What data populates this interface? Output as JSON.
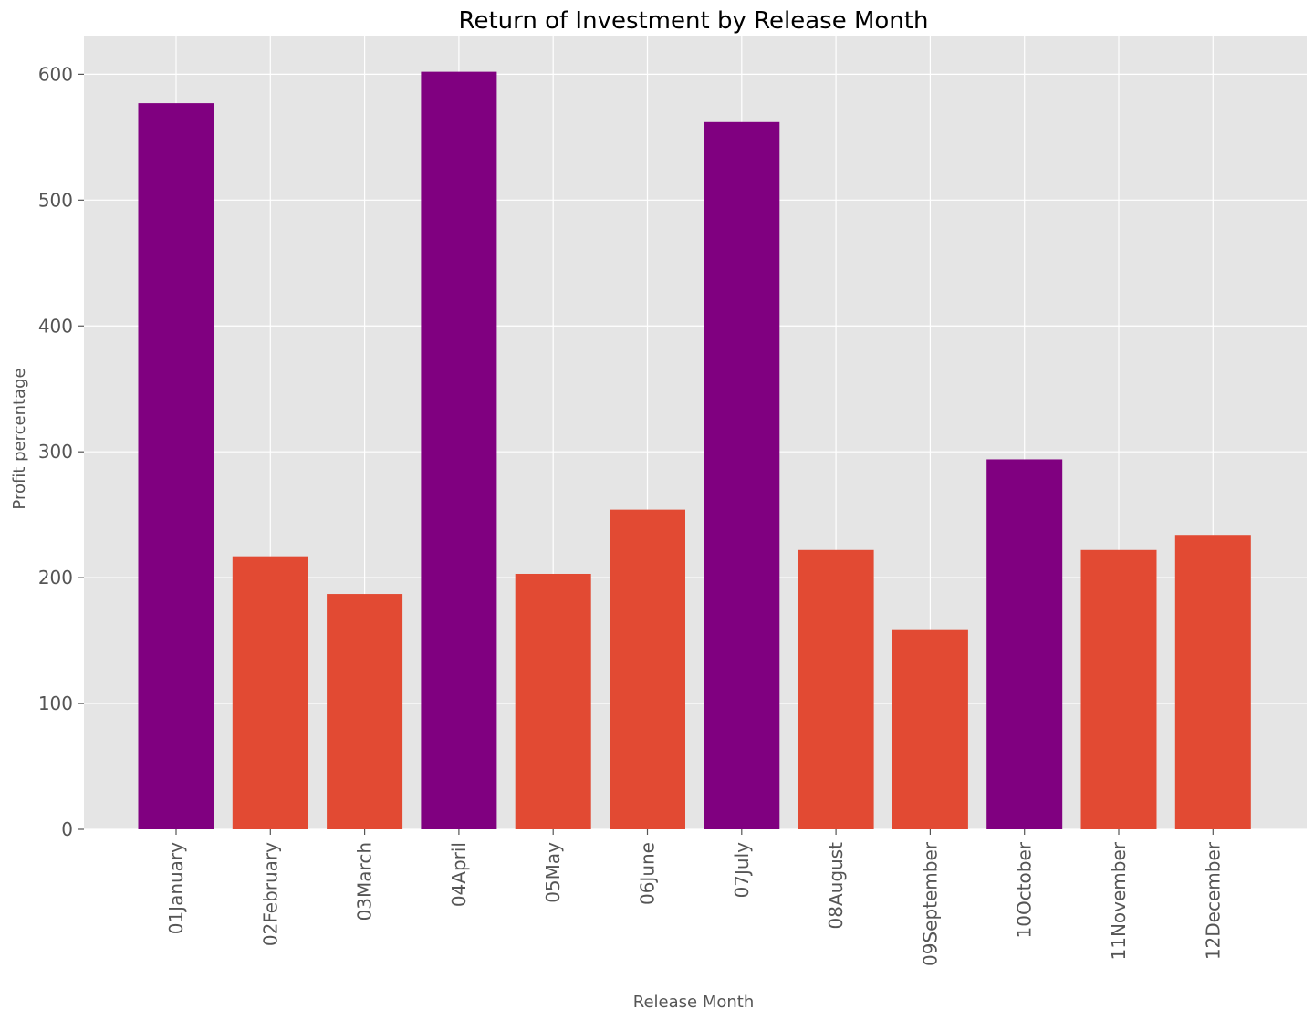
{
  "chart_data": {
    "type": "bar",
    "title": "Return of Investment by Release Month",
    "xlabel": "Release Month",
    "ylabel": "Profit percentage",
    "categories": [
      "01January",
      "02February",
      "03March",
      "04April",
      "05May",
      "06June",
      "07July",
      "08August",
      "09September",
      "10October",
      "11November",
      "12December"
    ],
    "values": [
      577,
      217,
      187,
      602,
      203,
      254,
      562,
      222,
      159,
      294,
      222,
      234
    ],
    "bar_colors": [
      "#800080",
      "#E24A33",
      "#E24A33",
      "#800080",
      "#E24A33",
      "#E24A33",
      "#800080",
      "#E24A33",
      "#E24A33",
      "#800080",
      "#E24A33",
      "#E24A33"
    ],
    "ylim": [
      0,
      630
    ],
    "yticks": [
      0,
      100,
      200,
      300,
      400,
      500,
      600
    ],
    "grid": true,
    "colors": {
      "plot_background": "#E5E5E5",
      "grid": "#FFFFFF",
      "highlight_bar": "#800080",
      "default_bar": "#E24A33",
      "tick_text": "#555555"
    }
  }
}
